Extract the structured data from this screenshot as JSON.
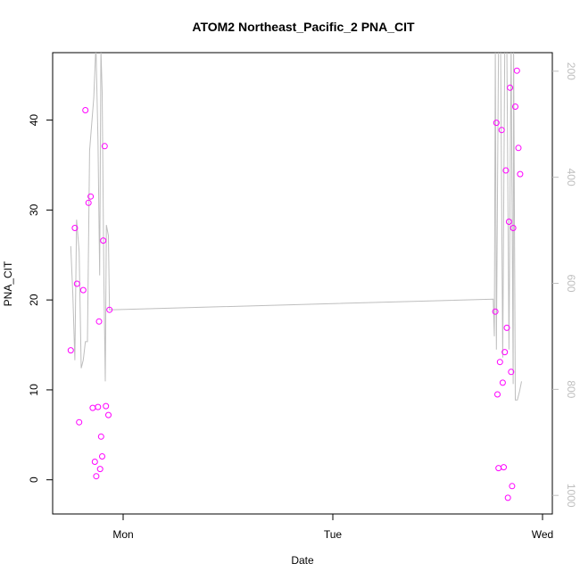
{
  "chart_data": {
    "type": "scatter",
    "title": "ATOM2 Northeast_Pacific_2 PNA_CIT",
    "xlabel": "Date",
    "ylabel": "PNA_CIT",
    "x_ticks": [
      "Mon",
      "Tue",
      "Wed"
    ],
    "ylim": [
      -3.8,
      47.5
    ],
    "y_ticks": [
      0,
      10,
      20,
      30,
      40
    ],
    "y2lim": [
      1035,
      165
    ],
    "y2_ticks": [
      200,
      400,
      600,
      800,
      1000
    ],
    "grid": false,
    "legend": "none",
    "colors": {
      "points": "#ff00ff",
      "line": "#bebebe"
    },
    "series": [
      {
        "kind": "points",
        "axis": "left",
        "values": [
          {
            "x": -0.25,
            "y": 14.4
          },
          {
            "x": -0.23,
            "y": 28.0
          },
          {
            "x": -0.22,
            "y": 21.8
          },
          {
            "x": -0.21,
            "y": 6.4
          },
          {
            "x": -0.19,
            "y": 21.1
          },
          {
            "x": -0.18,
            "y": 41.1
          },
          {
            "x": -0.165,
            "y": 30.8
          },
          {
            "x": -0.155,
            "y": 31.5
          },
          {
            "x": -0.145,
            "y": 8.0
          },
          {
            "x": -0.135,
            "y": 2.0
          },
          {
            "x": -0.128,
            "y": 0.4
          },
          {
            "x": -0.12,
            "y": 8.1
          },
          {
            "x": -0.115,
            "y": 17.6
          },
          {
            "x": -0.11,
            "y": 1.2
          },
          {
            "x": -0.105,
            "y": 4.8
          },
          {
            "x": -0.1,
            "y": 2.6
          },
          {
            "x": -0.095,
            "y": 26.6
          },
          {
            "x": -0.088,
            "y": 37.1
          },
          {
            "x": -0.082,
            "y": 8.2
          },
          {
            "x": -0.07,
            "y": 7.2
          },
          {
            "x": -0.065,
            "y": 18.9
          },
          {
            "x": 1.775,
            "y": 18.7
          },
          {
            "x": 1.78,
            "y": 39.7
          },
          {
            "x": 1.785,
            "y": 9.5
          },
          {
            "x": 1.79,
            "y": 1.3
          },
          {
            "x": 1.797,
            "y": 13.1
          },
          {
            "x": 1.805,
            "y": 38.9
          },
          {
            "x": 1.81,
            "y": 10.8
          },
          {
            "x": 1.815,
            "y": 1.4
          },
          {
            "x": 1.82,
            "y": 14.2
          },
          {
            "x": 1.825,
            "y": 34.4
          },
          {
            "x": 1.83,
            "y": 16.9
          },
          {
            "x": 1.835,
            "y": -2.0
          },
          {
            "x": 1.84,
            "y": 28.7
          },
          {
            "x": 1.845,
            "y": 43.6
          },
          {
            "x": 1.85,
            "y": 12.0
          },
          {
            "x": 1.855,
            "y": -0.7
          },
          {
            "x": 1.86,
            "y": 28.0
          },
          {
            "x": 1.87,
            "y": 41.5
          },
          {
            "x": 1.878,
            "y": 45.5
          },
          {
            "x": 1.885,
            "y": 36.9
          },
          {
            "x": 1.893,
            "y": 34.0
          }
        ]
      },
      {
        "kind": "line",
        "axis": "right",
        "values": [
          {
            "x": -0.25,
            "y": 530
          },
          {
            "x": -0.24,
            "y": 620
          },
          {
            "x": -0.23,
            "y": 745
          },
          {
            "x": -0.222,
            "y": 480
          },
          {
            "x": -0.21,
            "y": 540
          },
          {
            "x": -0.2,
            "y": 760
          },
          {
            "x": -0.19,
            "y": 745
          },
          {
            "x": -0.18,
            "y": 710
          },
          {
            "x": -0.17,
            "y": 710
          },
          {
            "x": -0.16,
            "y": 350
          },
          {
            "x": -0.14,
            "y": 250
          },
          {
            "x": -0.13,
            "y": 150
          },
          {
            "x": -0.12,
            "y": 330
          },
          {
            "x": -0.112,
            "y": 585
          },
          {
            "x": -0.106,
            "y": 160
          },
          {
            "x": -0.1,
            "y": 240
          },
          {
            "x": -0.092,
            "y": 590
          },
          {
            "x": -0.085,
            "y": 785
          },
          {
            "x": -0.08,
            "y": 490
          },
          {
            "x": -0.07,
            "y": 510
          },
          {
            "x": -0.065,
            "y": 650
          },
          {
            "x": 1.765,
            "y": 630
          },
          {
            "x": 1.77,
            "y": 700
          },
          {
            "x": 1.775,
            "y": 150
          },
          {
            "x": 1.78,
            "y": 725
          },
          {
            "x": 1.79,
            "y": 150
          },
          {
            "x": 1.8,
            "y": 150
          },
          {
            "x": 1.81,
            "y": 740
          },
          {
            "x": 1.82,
            "y": 150
          },
          {
            "x": 1.83,
            "y": 150
          },
          {
            "x": 1.84,
            "y": 725
          },
          {
            "x": 1.85,
            "y": 150
          },
          {
            "x": 1.86,
            "y": 790
          },
          {
            "x": 1.862,
            "y": 150
          },
          {
            "x": 1.87,
            "y": 820
          },
          {
            "x": 1.88,
            "y": 820
          },
          {
            "x": 1.89,
            "y": 805
          },
          {
            "x": 1.9,
            "y": 785
          }
        ]
      }
    ]
  }
}
